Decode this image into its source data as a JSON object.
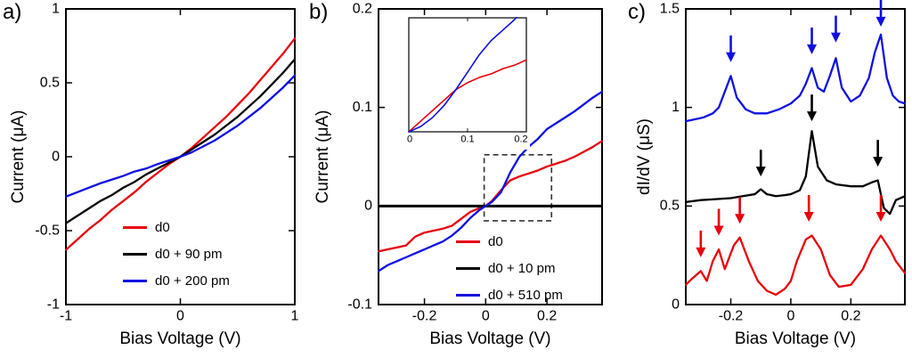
{
  "figure": {
    "panel_a_label": "a)",
    "panel_b_label": "b)",
    "panel_c_label": "c)"
  },
  "colors": {
    "red": "#e8000b",
    "black": "#000000",
    "blue": "#0f0fe0"
  },
  "chart_data": [
    {
      "type": "line",
      "panel": "a",
      "xlabel": "Bias Voltage (V)",
      "ylabel": "Current (μA)",
      "xlim": [
        -1,
        1
      ],
      "ylim": [
        -1,
        1
      ],
      "xticks": [
        -1,
        0,
        1
      ],
      "xtick_labels": [
        "-1",
        "0",
        "1"
      ],
      "yticks": [
        -1,
        -0.5,
        0,
        0.5,
        1
      ],
      "ytick_labels": [
        "-1",
        "-0.5",
        "0",
        "0.5",
        "1"
      ],
      "grid": false,
      "legend_position": "lower-right",
      "legend": [
        {
          "label": "d0",
          "color": "red"
        },
        {
          "label": "d0 + 90 pm",
          "color": "black"
        },
        {
          "label": "d0 + 200 pm",
          "color": "blue"
        }
      ],
      "series": [
        {
          "name": "d0",
          "color": "red",
          "x": [
            -1,
            -0.9,
            -0.8,
            -0.7,
            -0.6,
            -0.5,
            -0.4,
            -0.3,
            -0.2,
            -0.1,
            0,
            0.1,
            0.2,
            0.3,
            0.4,
            0.5,
            0.6,
            0.7,
            0.8,
            0.9,
            1
          ],
          "y": [
            -0.63,
            -0.56,
            -0.49,
            -0.43,
            -0.36,
            -0.3,
            -0.24,
            -0.17,
            -0.11,
            -0.05,
            0,
            0.06,
            0.13,
            0.2,
            0.27,
            0.35,
            0.43,
            0.52,
            0.61,
            0.7,
            0.8
          ]
        },
        {
          "name": "d0 + 90 pm",
          "color": "black",
          "x": [
            -1,
            -0.9,
            -0.8,
            -0.7,
            -0.6,
            -0.5,
            -0.4,
            -0.3,
            -0.2,
            -0.1,
            0,
            0.1,
            0.2,
            0.3,
            0.4,
            0.5,
            0.6,
            0.7,
            0.8,
            0.9,
            1
          ],
          "y": [
            -0.45,
            -0.4,
            -0.35,
            -0.3,
            -0.26,
            -0.21,
            -0.17,
            -0.12,
            -0.08,
            -0.04,
            0,
            0.05,
            0.1,
            0.15,
            0.21,
            0.27,
            0.34,
            0.41,
            0.49,
            0.57,
            0.66
          ]
        },
        {
          "name": "d0 + 200 pm",
          "color": "blue",
          "x": [
            -1,
            -0.9,
            -0.8,
            -0.7,
            -0.6,
            -0.5,
            -0.4,
            -0.3,
            -0.2,
            -0.1,
            0,
            0.1,
            0.2,
            0.3,
            0.4,
            0.5,
            0.6,
            0.7,
            0.8,
            0.9,
            1
          ],
          "y": [
            -0.27,
            -0.24,
            -0.21,
            -0.18,
            -0.155,
            -0.13,
            -0.1,
            -0.08,
            -0.05,
            -0.025,
            0,
            0.03,
            0.07,
            0.11,
            0.16,
            0.21,
            0.27,
            0.33,
            0.4,
            0.47,
            0.55
          ]
        }
      ]
    },
    {
      "type": "line",
      "panel": "b",
      "xlabel": "Bias Voltage (V)",
      "ylabel": "Current (μA)",
      "xlim": [
        -0.35,
        0.38
      ],
      "ylim": [
        -0.1,
        0.2
      ],
      "xticks": [
        -0.2,
        0,
        0.2
      ],
      "xtick_labels": [
        "-0.2",
        "0",
        "0.2"
      ],
      "yticks": [
        -0.1,
        0,
        0.1,
        0.2
      ],
      "ytick_labels": [
        "-0.1",
        "0",
        "0.1",
        "0.2"
      ],
      "grid": false,
      "legend_position": "lower-right",
      "legend": [
        {
          "label": "d0",
          "color": "red"
        },
        {
          "label": "d0 + 10 pm",
          "color": "black"
        },
        {
          "label": "d0 + 510 pm",
          "color": "blue"
        }
      ],
      "highlight_box": {
        "x0": -0.005,
        "x1": 0.215,
        "y0": -0.015,
        "y1": 0.052
      },
      "series": [
        {
          "name": "d0",
          "color": "red",
          "x": [
            -0.35,
            -0.32,
            -0.29,
            -0.26,
            -0.23,
            -0.2,
            -0.17,
            -0.14,
            -0.11,
            -0.08,
            -0.05,
            -0.02,
            0,
            0.02,
            0.05,
            0.08,
            0.11,
            0.14,
            0.17,
            0.2,
            0.23,
            0.26,
            0.29,
            0.32,
            0.35,
            0.38
          ],
          "y": [
            -0.046,
            -0.044,
            -0.042,
            -0.04,
            -0.031,
            -0.027,
            -0.025,
            -0.023,
            -0.02,
            -0.013,
            -0.006,
            -0.002,
            0.0,
            0.005,
            0.016,
            0.026,
            0.03,
            0.033,
            0.036,
            0.04,
            0.043,
            0.046,
            0.05,
            0.055,
            0.06,
            0.066
          ]
        },
        {
          "name": "d0 + 10 pm",
          "color": "black",
          "width": 3,
          "x": [
            -0.35,
            -0.32,
            -0.29,
            -0.26,
            -0.23,
            -0.2,
            -0.17,
            -0.14,
            -0.11,
            -0.08,
            -0.05,
            -0.02,
            0,
            0.02,
            0.05,
            0.08,
            0.11,
            0.14,
            0.17,
            0.2,
            0.23,
            0.26,
            0.29,
            0.32,
            0.35,
            0.38
          ],
          "y": [
            0,
            0,
            0,
            0,
            0,
            0,
            0,
            0,
            0,
            0,
            0,
            0,
            0,
            0,
            0,
            0,
            0,
            0,
            0,
            0,
            0,
            0,
            0,
            0,
            0,
            0
          ]
        },
        {
          "name": "d0 + 510 pm",
          "color": "blue",
          "x": [
            -0.35,
            -0.32,
            -0.29,
            -0.26,
            -0.23,
            -0.2,
            -0.17,
            -0.14,
            -0.11,
            -0.08,
            -0.05,
            -0.02,
            0,
            0.02,
            0.05,
            0.08,
            0.11,
            0.14,
            0.17,
            0.2,
            0.23,
            0.26,
            0.29,
            0.32,
            0.35,
            0.38
          ],
          "y": [
            -0.066,
            -0.06,
            -0.056,
            -0.052,
            -0.048,
            -0.044,
            -0.04,
            -0.036,
            -0.03,
            -0.022,
            -0.012,
            -0.004,
            0.0,
            0.004,
            0.014,
            0.034,
            0.05,
            0.06,
            0.068,
            0.078,
            0.084,
            0.09,
            0.096,
            0.103,
            0.11,
            0.116
          ]
        }
      ],
      "inset": {
        "xlim": [
          0,
          0.2
        ],
        "ylim": [
          0,
          0.065
        ],
        "xticks": [
          0,
          0.1,
          0.2
        ],
        "xtick_labels": [
          "0",
          "0.1",
          "0.2"
        ],
        "series": [
          {
            "name": "d0",
            "color": "red",
            "x": [
              0,
              0.02,
              0.04,
              0.06,
              0.08,
              0.1,
              0.12,
              0.14,
              0.16,
              0.18,
              0.2
            ],
            "y": [
              0.0,
              0.006,
              0.012,
              0.018,
              0.024,
              0.028,
              0.031,
              0.033,
              0.036,
              0.038,
              0.041
            ]
          },
          {
            "name": "d0 + 510 pm",
            "color": "blue",
            "x": [
              0,
              0.02,
              0.04,
              0.06,
              0.08,
              0.1,
              0.12,
              0.14,
              0.16,
              0.18,
              0.2
            ],
            "y": [
              0.0,
              0.003,
              0.008,
              0.015,
              0.024,
              0.034,
              0.044,
              0.052,
              0.058,
              0.064,
              0.072
            ]
          }
        ]
      }
    },
    {
      "type": "line",
      "panel": "c",
      "xlabel": "Bias Voltage (V)",
      "ylabel": "dI/dV (μS)",
      "xlim": [
        -0.35,
        0.38
      ],
      "ylim": [
        0,
        1.5
      ],
      "xticks": [
        -0.2,
        0,
        0.2
      ],
      "xtick_labels": [
        "-0.2",
        "0",
        "0.2"
      ],
      "yticks": [
        0,
        0.5,
        1,
        1.5
      ],
      "ytick_labels": [
        "0",
        "0.5",
        "1",
        "1.5"
      ],
      "grid": false,
      "series": [
        {
          "name": "spectrum-top",
          "color": "blue",
          "x": [
            -0.35,
            -0.32,
            -0.29,
            -0.26,
            -0.24,
            -0.22,
            -0.2,
            -0.18,
            -0.15,
            -0.12,
            -0.08,
            -0.04,
            0,
            0.03,
            0.05,
            0.07,
            0.09,
            0.11,
            0.13,
            0.15,
            0.17,
            0.2,
            0.23,
            0.26,
            0.28,
            0.3,
            0.32,
            0.34,
            0.36,
            0.38
          ],
          "y": [
            0.93,
            0.94,
            0.95,
            0.97,
            1.0,
            1.08,
            1.16,
            1.05,
            0.99,
            0.97,
            0.97,
            0.99,
            1.02,
            1.06,
            1.12,
            1.2,
            1.1,
            1.08,
            1.16,
            1.25,
            1.1,
            1.03,
            1.06,
            1.15,
            1.28,
            1.37,
            1.15,
            1.06,
            1.03,
            1.02
          ]
        },
        {
          "name": "spectrum-middle",
          "color": "black",
          "x": [
            -0.35,
            -0.3,
            -0.25,
            -0.2,
            -0.16,
            -0.12,
            -0.1,
            -0.08,
            -0.05,
            -0.02,
            0,
            0.03,
            0.05,
            0.07,
            0.09,
            0.12,
            0.15,
            0.2,
            0.24,
            0.27,
            0.29,
            0.31,
            0.33,
            0.35,
            0.38
          ],
          "y": [
            0.52,
            0.53,
            0.535,
            0.54,
            0.55,
            0.56,
            0.585,
            0.56,
            0.55,
            0.555,
            0.56,
            0.58,
            0.65,
            0.88,
            0.7,
            0.63,
            0.61,
            0.6,
            0.6,
            0.62,
            0.63,
            0.49,
            0.46,
            0.53,
            0.55
          ]
        },
        {
          "name": "spectrum-bottom",
          "color": "red",
          "x": [
            -0.35,
            -0.33,
            -0.3,
            -0.28,
            -0.26,
            -0.24,
            -0.22,
            -0.19,
            -0.17,
            -0.14,
            -0.11,
            -0.08,
            -0.05,
            -0.02,
            0,
            0.02,
            0.05,
            0.07,
            0.1,
            0.13,
            0.16,
            0.2,
            0.24,
            0.27,
            0.3,
            0.33,
            0.35,
            0.38
          ],
          "y": [
            0.1,
            0.13,
            0.17,
            0.12,
            0.22,
            0.28,
            0.18,
            0.3,
            0.34,
            0.22,
            0.12,
            0.07,
            0.05,
            0.08,
            0.12,
            0.22,
            0.33,
            0.35,
            0.28,
            0.15,
            0.09,
            0.1,
            0.18,
            0.28,
            0.35,
            0.28,
            0.22,
            0.16
          ]
        }
      ],
      "arrows": [
        {
          "x": -0.2,
          "y": 1.23,
          "color": "blue"
        },
        {
          "x": 0.07,
          "y": 1.27,
          "color": "blue"
        },
        {
          "x": 0.15,
          "y": 1.33,
          "color": "blue"
        },
        {
          "x": 0.3,
          "y": 1.41,
          "color": "blue"
        },
        {
          "x": -0.1,
          "y": 0.65,
          "color": "black"
        },
        {
          "x": 0.07,
          "y": 0.93,
          "color": "black"
        },
        {
          "x": 0.29,
          "y": 0.7,
          "color": "black"
        },
        {
          "x": -0.3,
          "y": 0.24,
          "color": "red"
        },
        {
          "x": -0.24,
          "y": 0.35,
          "color": "red"
        },
        {
          "x": -0.17,
          "y": 0.41,
          "color": "red"
        },
        {
          "x": 0.06,
          "y": 0.42,
          "color": "red"
        },
        {
          "x": 0.3,
          "y": 0.42,
          "color": "red"
        }
      ]
    }
  ]
}
